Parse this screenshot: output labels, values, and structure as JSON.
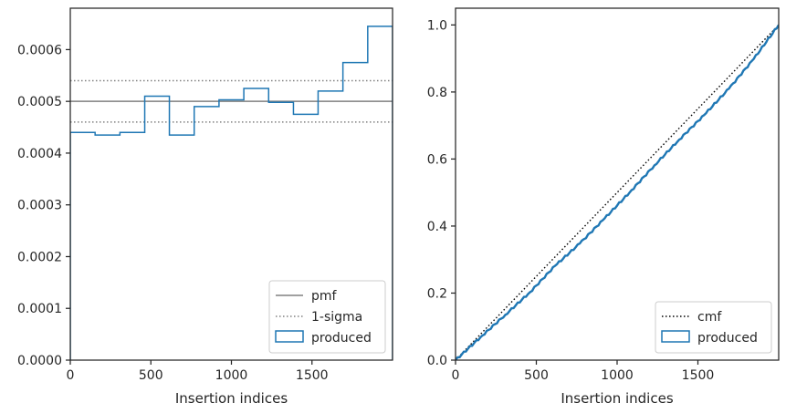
{
  "chart_data": [
    {
      "type": "histogram-step",
      "xlabel": "Insertion indices",
      "ylabel": "",
      "xlim": [
        0,
        2000
      ],
      "ylim": [
        0,
        0.00068
      ],
      "xticks": [
        0,
        500,
        1000,
        1500
      ],
      "xtick_labels": [
        "0",
        "500",
        "1000",
        "1500"
      ],
      "yticks": [
        0,
        0.0001,
        0.0002,
        0.0003,
        0.0004,
        0.0005,
        0.0006
      ],
      "ytick_labels": [
        "0.0000",
        "0.0001",
        "0.0002",
        "0.0003",
        "0.0004",
        "0.0005",
        "0.0006"
      ],
      "grid": false,
      "legend_position": "bottom-right",
      "bin_edges": [
        0,
        154,
        308,
        462,
        615,
        769,
        923,
        1077,
        1231,
        1385,
        1538,
        1692,
        1846,
        2000
      ],
      "series": [
        {
          "name": "produced",
          "style": "step",
          "color": "#1f77b4",
          "values": [
            0.00044,
            0.000435,
            0.00044,
            0.00051,
            0.000435,
            0.00049,
            0.000503,
            0.000525,
            0.000498,
            0.000475,
            0.00052,
            0.000575,
            0.000645
          ]
        }
      ],
      "reference_lines": [
        {
          "name": "pmf",
          "y": 0.0005,
          "style": "solid",
          "color": "#808080"
        },
        {
          "name": "1-sigma",
          "y": 0.00054,
          "style": "dotted",
          "color": "#808080"
        },
        {
          "name": "",
          "y": 0.00046,
          "style": "dotted",
          "color": "#808080"
        }
      ],
      "legend": [
        "pmf",
        "1-sigma",
        "produced"
      ]
    },
    {
      "type": "line",
      "xlabel": "Insertion indices",
      "ylabel": "",
      "xlim": [
        0,
        2000
      ],
      "ylim": [
        0,
        1.05
      ],
      "xticks": [
        0,
        500,
        1000,
        1500
      ],
      "xtick_labels": [
        "0",
        "500",
        "1000",
        "1500"
      ],
      "yticks": [
        0,
        0.2,
        0.4,
        0.6,
        0.8,
        1.0
      ],
      "ytick_labels": [
        "0.0",
        "0.2",
        "0.4",
        "0.6",
        "0.8",
        "1.0"
      ],
      "grid": false,
      "legend_position": "bottom-right",
      "series": [
        {
          "name": "cmf",
          "style": "dotted",
          "color": "#000000",
          "x": [
            0,
            2000
          ],
          "y": [
            0,
            1.0
          ]
        },
        {
          "name": "produced",
          "style": "solid",
          "color": "#1f77b4",
          "x": [
            0,
            154,
            308,
            462,
            615,
            769,
            923,
            1077,
            1231,
            1385,
            1538,
            1692,
            1846,
            2000
          ],
          "y": [
            0,
            0.068,
            0.135,
            0.203,
            0.281,
            0.348,
            0.423,
            0.5,
            0.581,
            0.658,
            0.731,
            0.81,
            0.899,
            1.0
          ]
        }
      ],
      "legend": [
        "cmf",
        "produced"
      ]
    }
  ]
}
